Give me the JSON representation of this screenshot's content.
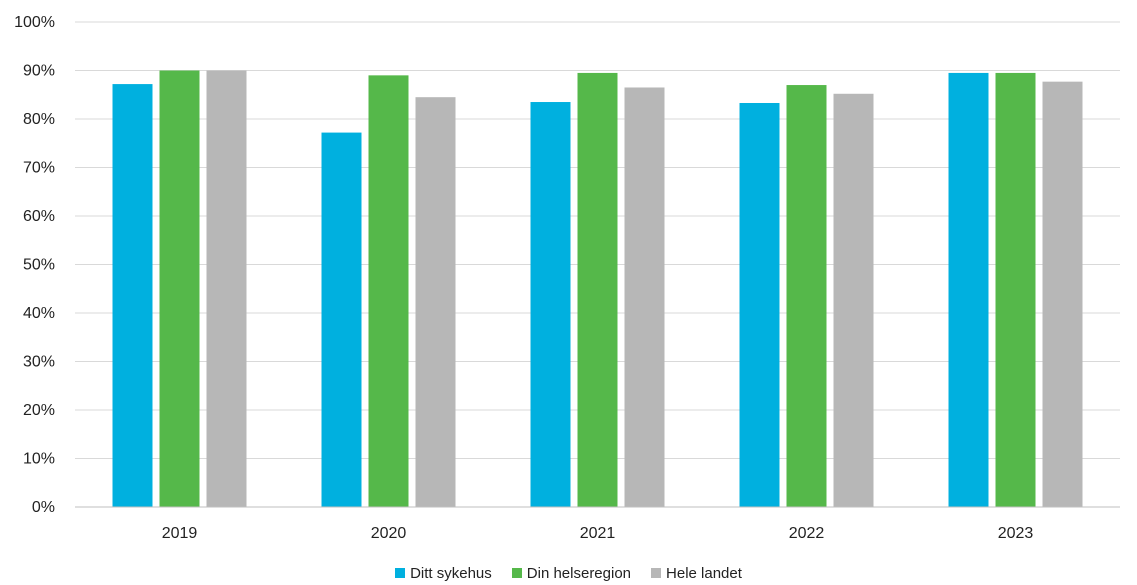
{
  "chart_data": {
    "type": "bar",
    "title": "",
    "xlabel": "",
    "ylabel": "",
    "categories": [
      "2019",
      "2020",
      "2021",
      "2022",
      "2023"
    ],
    "series": [
      {
        "name": "Ditt sykehus",
        "color": "#00B0DF",
        "values": [
          87.2,
          77.2,
          83.5,
          83.3,
          89.5
        ]
      },
      {
        "name": "Din helseregion",
        "color": "#55B84A",
        "values": [
          90.0,
          89.0,
          89.5,
          87.0,
          89.5
        ]
      },
      {
        "name": "Hele landet",
        "color": "#B7B7B7",
        "values": [
          90.0,
          84.5,
          86.5,
          85.2,
          87.7
        ]
      }
    ],
    "ylim": [
      0,
      100
    ],
    "yticks": [
      "0%",
      "10%",
      "20%",
      "30%",
      "40%",
      "50%",
      "60%",
      "70%",
      "80%",
      "90%",
      "100%"
    ],
    "grid": true,
    "legend_position": "bottom"
  }
}
